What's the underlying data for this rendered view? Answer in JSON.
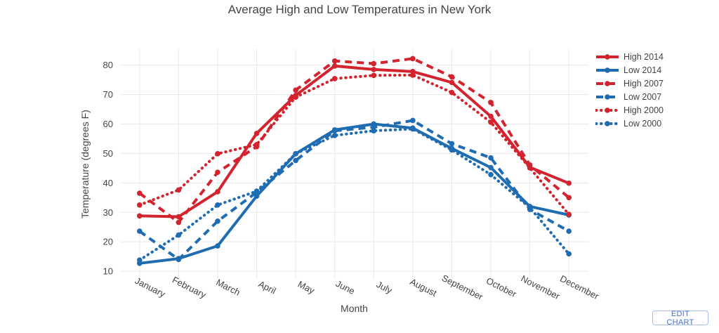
{
  "chart_data": {
    "type": "line",
    "title": "Average High and Low Temperatures in New York",
    "xlabel": "Month",
    "ylabel": "Temperature (degrees F)",
    "categories": [
      "January",
      "February",
      "March",
      "April",
      "May",
      "June",
      "July",
      "August",
      "September",
      "October",
      "November",
      "December"
    ],
    "yticks": [
      10,
      20,
      30,
      40,
      50,
      60,
      70,
      80
    ],
    "ylim": [
      7.4,
      85.4
    ],
    "grid": true,
    "legend_position": "right",
    "series": [
      {
        "name": "High 2014",
        "color": "#d2232e",
        "dash": "solid",
        "values": [
          28.8,
          28.5,
          37.0,
          56.8,
          69.7,
          79.7,
          78.5,
          77.8,
          74.1,
          62.6,
          45.3,
          39.9
        ]
      },
      {
        "name": "Low 2014",
        "color": "#1f6cb2",
        "dash": "solid",
        "values": [
          12.7,
          14.3,
          18.6,
          35.5,
          49.9,
          58.0,
          60.0,
          58.6,
          51.7,
          45.2,
          32.0,
          29.1
        ]
      },
      {
        "name": "High 2007",
        "color": "#d2232e",
        "dash": "dash",
        "values": [
          36.5,
          26.6,
          43.6,
          52.3,
          71.5,
          81.4,
          80.5,
          82.2,
          76.0,
          67.3,
          46.1,
          35.0
        ]
      },
      {
        "name": "Low 2007",
        "color": "#1f6cb2",
        "dash": "dash",
        "values": [
          23.6,
          14.0,
          27.0,
          36.8,
          47.6,
          57.7,
          58.9,
          61.2,
          53.3,
          48.5,
          31.0,
          23.6
        ]
      },
      {
        "name": "High 2000",
        "color": "#d2232e",
        "dash": "dot",
        "values": [
          32.5,
          37.6,
          49.9,
          53.0,
          69.1,
          75.4,
          76.5,
          76.6,
          70.7,
          60.6,
          45.1,
          29.3
        ]
      },
      {
        "name": "Low 2000",
        "color": "#1f6cb2",
        "dash": "dot",
        "values": [
          13.8,
          22.3,
          32.5,
          37.2,
          49.9,
          56.1,
          57.7,
          58.3,
          51.2,
          42.8,
          31.6,
          15.9
        ]
      }
    ]
  },
  "edit_chart": {
    "label": "EDIT CHART"
  }
}
